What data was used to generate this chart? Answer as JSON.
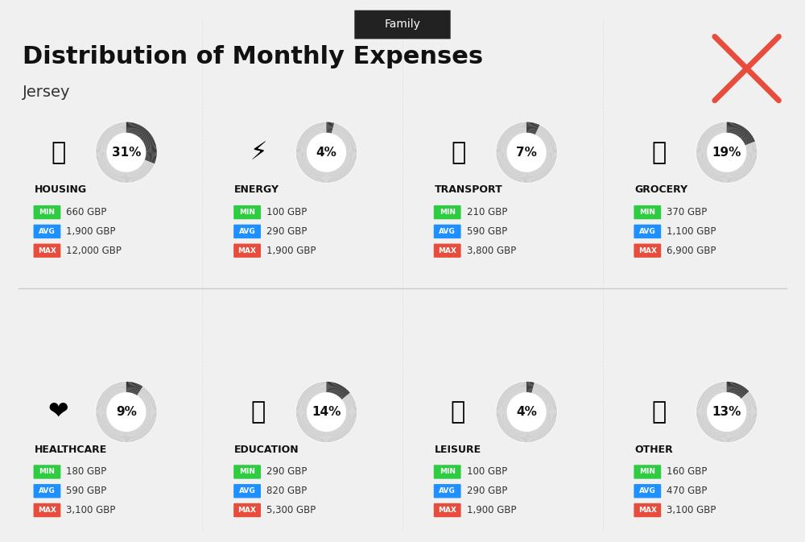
{
  "title": "Distribution of Monthly Expenses",
  "subtitle": "Jersey",
  "header_label": "Family",
  "background_color": "#f0f0f0",
  "categories": [
    {
      "name": "HOUSING",
      "pct": 31,
      "min": "660 GBP",
      "avg": "1,900 GBP",
      "max": "12,000 GBP",
      "row": 0,
      "col": 0
    },
    {
      "name": "ENERGY",
      "pct": 4,
      "min": "100 GBP",
      "avg": "290 GBP",
      "max": "1,900 GBP",
      "row": 0,
      "col": 1
    },
    {
      "name": "TRANSPORT",
      "pct": 7,
      "min": "210 GBP",
      "avg": "590 GBP",
      "max": "3,800 GBP",
      "row": 0,
      "col": 2
    },
    {
      "name": "GROCERY",
      "pct": 19,
      "min": "370 GBP",
      "avg": "1,100 GBP",
      "max": "6,900 GBP",
      "row": 0,
      "col": 3
    },
    {
      "name": "HEALTHCARE",
      "pct": 9,
      "min": "180 GBP",
      "avg": "590 GBP",
      "max": "3,100 GBP",
      "row": 1,
      "col": 0
    },
    {
      "name": "EDUCATION",
      "pct": 14,
      "min": "290 GBP",
      "avg": "820 GBP",
      "max": "5,300 GBP",
      "row": 1,
      "col": 1
    },
    {
      "name": "LEISURE",
      "pct": 4,
      "min": "100 GBP",
      "avg": "290 GBP",
      "max": "1,900 GBP",
      "row": 1,
      "col": 2
    },
    {
      "name": "OTHER",
      "pct": 13,
      "min": "160 GBP",
      "avg": "470 GBP",
      "max": "3,100 GBP",
      "row": 1,
      "col": 3
    }
  ],
  "min_color": "#2ecc40",
  "avg_color": "#1e90ff",
  "max_color": "#e74c3c",
  "label_color": "#ffffff",
  "arc_filled_color": "#333333",
  "arc_empty_color": "#cccccc",
  "title_color": "#111111",
  "subtitle_color": "#333333",
  "category_name_color": "#111111",
  "value_color": "#333333",
  "header_bg": "#222222",
  "header_text_color": "#ffffff"
}
